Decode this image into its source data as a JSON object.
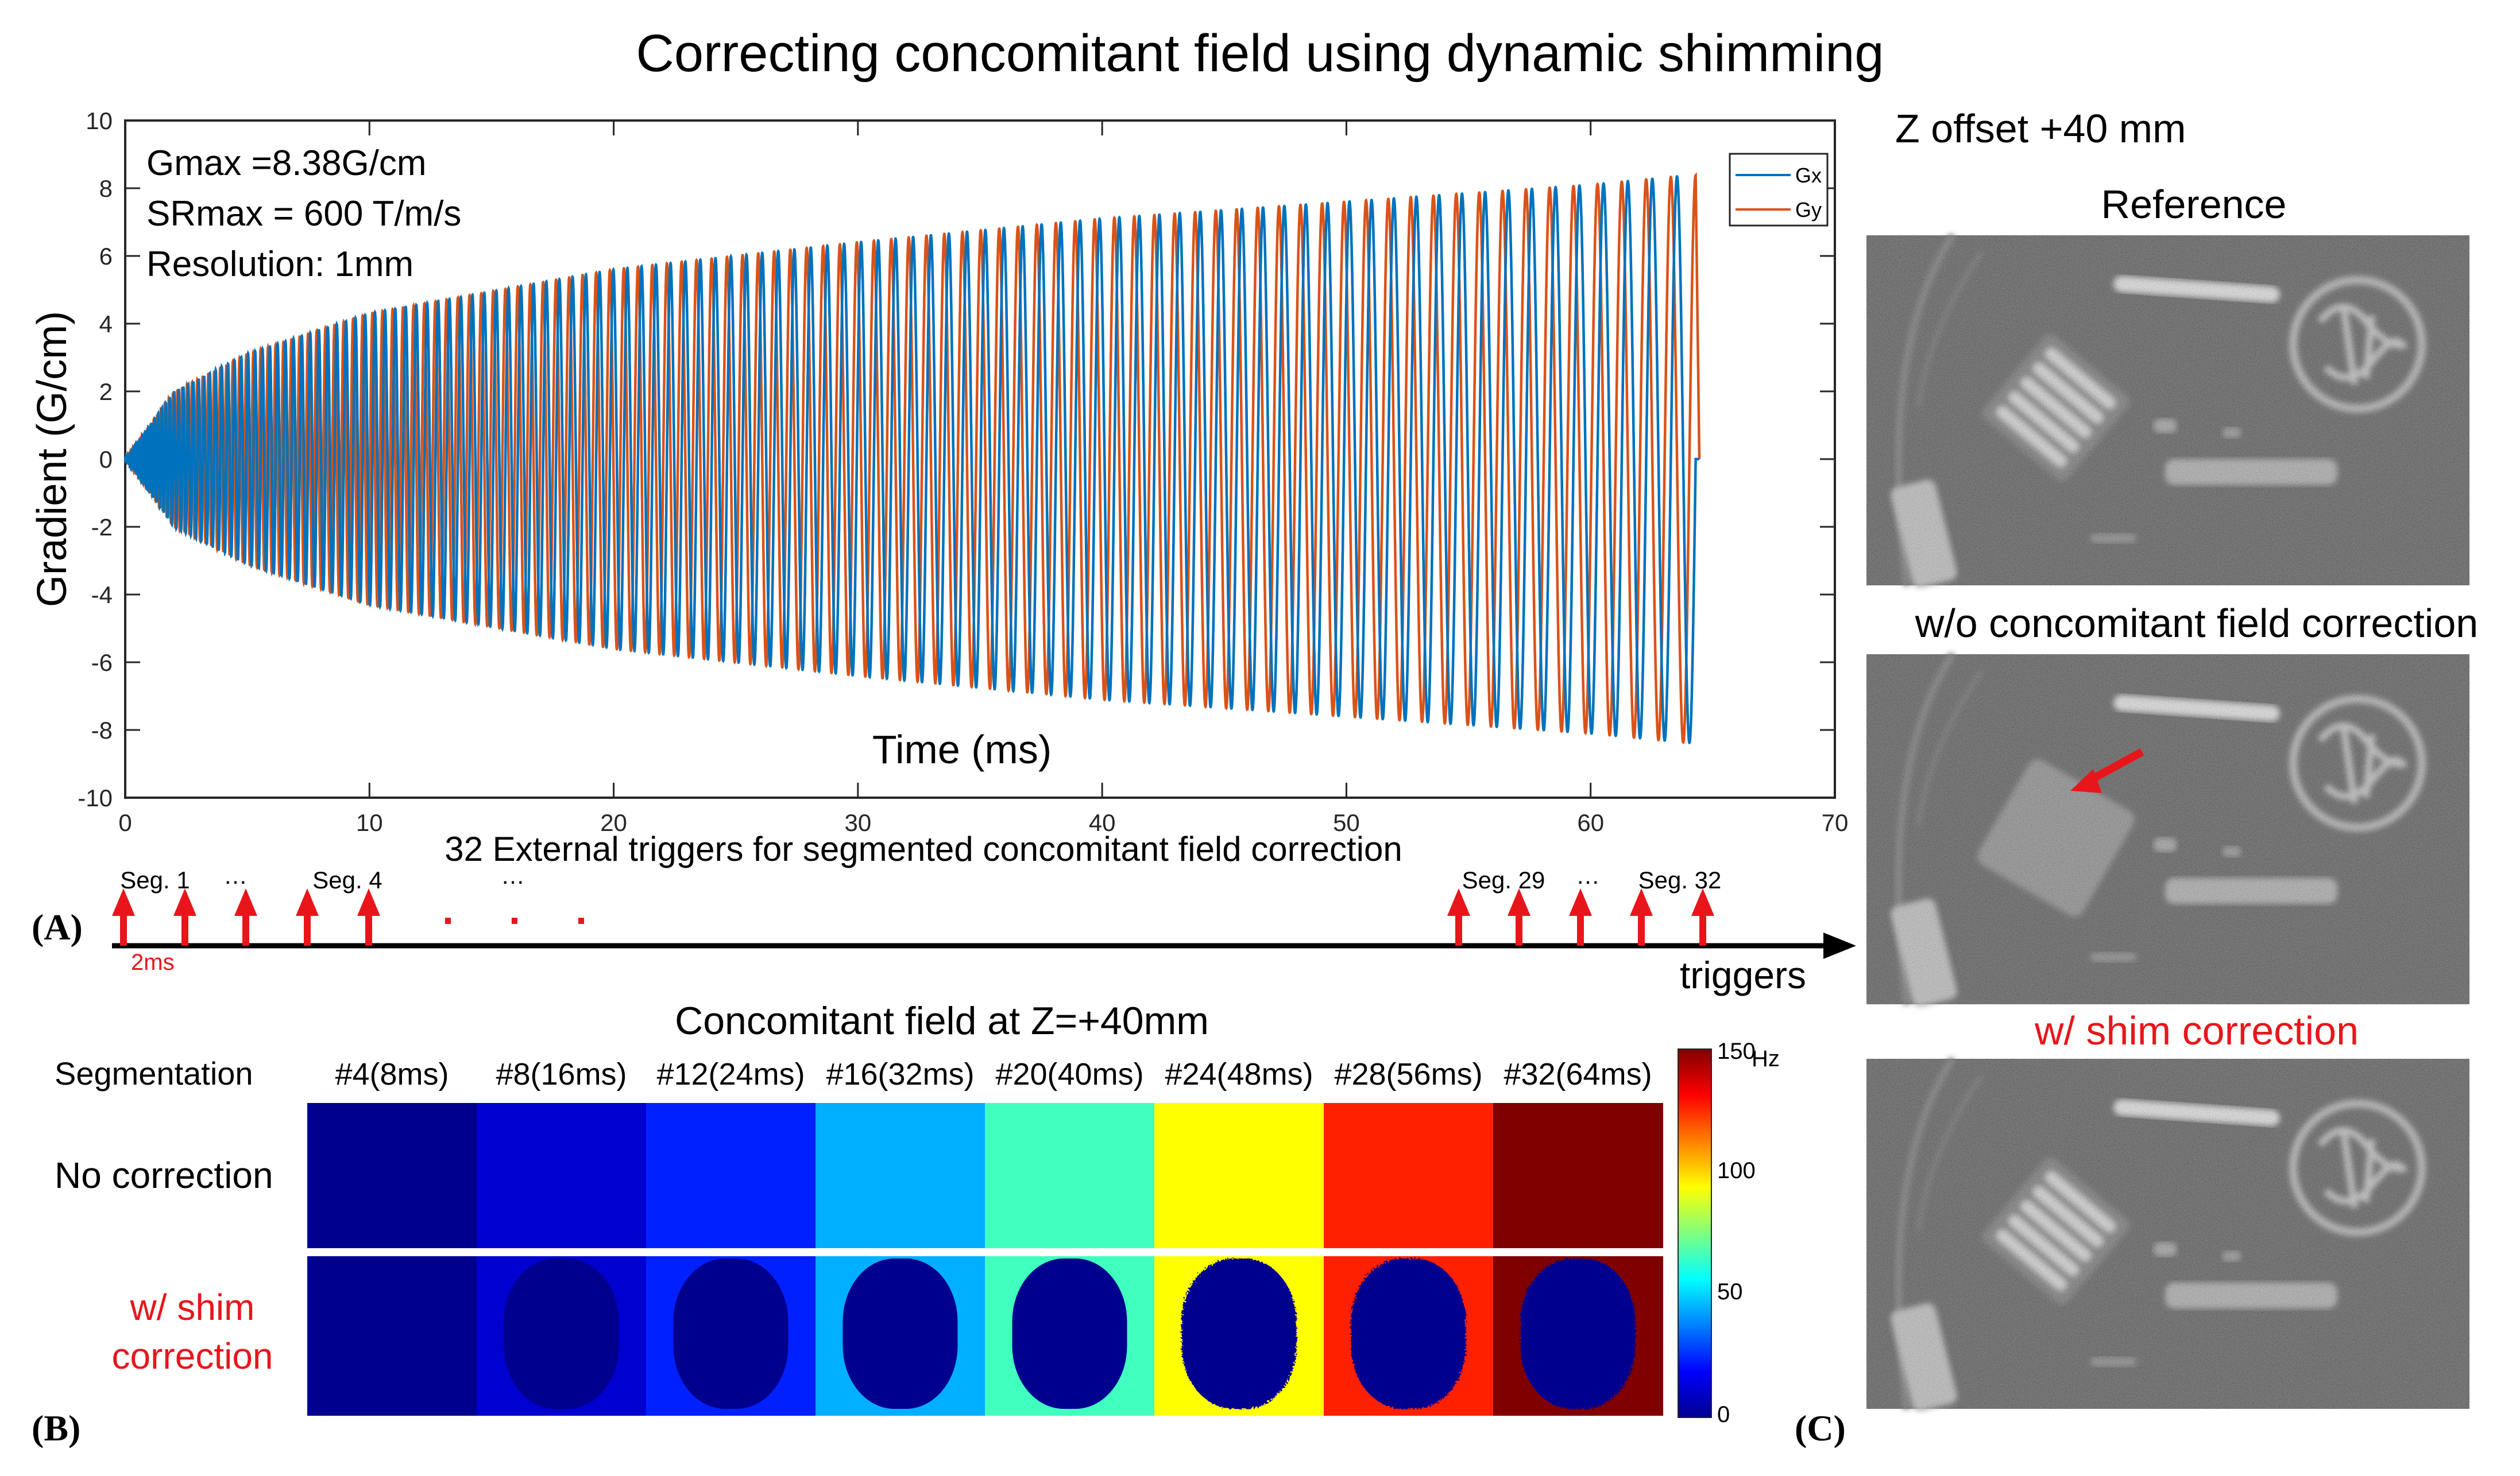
{
  "title": "Correcting concomitant field using dynamic shimming",
  "colors": {
    "gx": "#0072BD",
    "gy": "#D95319",
    "red": "#E8161B",
    "heat": [
      "#00008F",
      "#0000CF",
      "#0020FF",
      "#00AFFF",
      "#40FFBF",
      "#FFFF00",
      "#FF2000",
      "#800000"
    ]
  },
  "panel_a": {
    "label": "(A)",
    "annotations": [
      "Gmax =8.38G/cm",
      "SRmax = 600 T/m/s",
      "Resolution: 1mm"
    ],
    "triggers_title": "32 External triggers for segmented concomitant field correction",
    "trigger_labels": [
      "Seg. 1",
      "…",
      "Seg. 4",
      "…",
      "Seg. 29",
      "…",
      "Seg. 32"
    ],
    "trigger_ellipsis": ". . .",
    "interval_label": "2ms",
    "axis_label": "triggers"
  },
  "chart_data": {
    "type": "line",
    "title": "",
    "xlabel": "Time (ms)",
    "ylabel": "Gradient (G/cm)",
    "xlim": [
      0,
      70
    ],
    "ylim": [
      -10,
      10
    ],
    "xticks": [
      0,
      10,
      20,
      30,
      40,
      50,
      60,
      70
    ],
    "yticks": [
      -10,
      -8,
      -6,
      -4,
      -2,
      0,
      2,
      4,
      6,
      8,
      10
    ],
    "grid": false,
    "legend_position": "top-right",
    "series": [
      {
        "name": "Gx",
        "description": "spiral readout oscillation",
        "duration_ms": 64.3,
        "envelope_max_G_per_cm": 8.38,
        "cycles": 126
      },
      {
        "name": "Gy",
        "description": "spiral readout oscillation (90 deg phase shift)",
        "duration_ms": 64.3,
        "envelope_max_G_per_cm": 8.38,
        "cycles": 126
      }
    ],
    "envelope_points": {
      "t_ms": [
        0,
        2,
        5,
        10,
        20,
        30,
        40,
        50,
        60,
        64
      ],
      "amp": [
        0,
        2.0,
        3.1,
        4.3,
        5.6,
        6.4,
        7.1,
        7.6,
        8.1,
        8.38
      ]
    }
  },
  "panel_b": {
    "label": "(B)",
    "title": "Concomitant field at Z=+40mm",
    "segmentation_label": "Segmentation",
    "segments": [
      "#4(8ms)",
      "#8(16ms)",
      "#12(24ms)",
      "#16(32ms)",
      "#20(40ms)",
      "#24(48ms)",
      "#28(56ms)",
      "#32(64ms)"
    ],
    "row_no_correction": "No correction",
    "row_shim_line1": "w/ shim",
    "row_shim_line2": "correction",
    "colorbar": {
      "unit": "Hz",
      "ticks": [
        "150",
        "100",
        "50",
        "0"
      ],
      "range": [
        0,
        150
      ]
    }
  },
  "panel_c": {
    "label": "(C)",
    "z_offset": "Z offset +40 mm",
    "reference": "Reference",
    "without": "w/o concomitant field correction",
    "with_shim": "w/ shim correction"
  }
}
